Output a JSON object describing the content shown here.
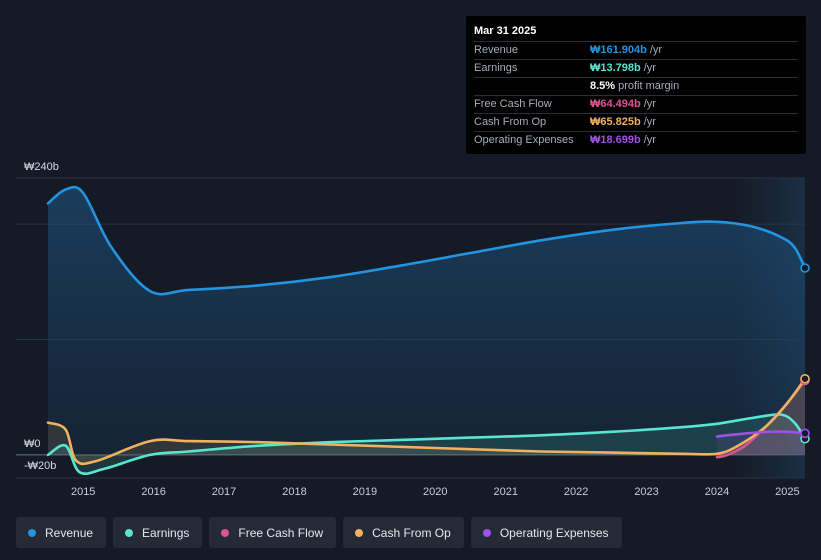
{
  "chart_data": {
    "type": "area",
    "y_axis": {
      "top_label": "₩240b",
      "zero_label": "₩0",
      "bottom_label": "-₩20b",
      "ylim": [
        -20,
        240
      ]
    },
    "x_ticks": [
      "2015",
      "2016",
      "2017",
      "2018",
      "2019",
      "2020",
      "2021",
      "2022",
      "2023",
      "2024",
      "2025"
    ],
    "xlim": [
      2014.5,
      2025.25
    ],
    "forecast_start": 2024.25,
    "series": [
      {
        "name": "Revenue",
        "color": "#2394df",
        "points": [
          [
            2014.5,
            218
          ],
          [
            2014.75,
            230
          ],
          [
            2015.0,
            227
          ],
          [
            2015.4,
            180
          ],
          [
            2015.95,
            142
          ],
          [
            2016.5,
            143
          ],
          [
            2017.5,
            147
          ],
          [
            2018.5,
            154
          ],
          [
            2019.5,
            164
          ],
          [
            2020.5,
            175
          ],
          [
            2021.5,
            186
          ],
          [
            2022.5,
            195
          ],
          [
            2023.5,
            201
          ],
          [
            2024.0,
            202
          ],
          [
            2024.5,
            198
          ],
          [
            2024.9,
            189
          ],
          [
            2025.1,
            180
          ],
          [
            2025.25,
            162
          ]
        ]
      },
      {
        "name": "Earnings",
        "color": "#58e6d0",
        "points": [
          [
            2014.5,
            0
          ],
          [
            2014.75,
            8
          ],
          [
            2014.95,
            -15
          ],
          [
            2015.3,
            -12
          ],
          [
            2015.95,
            0
          ],
          [
            2016.5,
            3
          ],
          [
            2017.5,
            8
          ],
          [
            2018.5,
            11
          ],
          [
            2019.5,
            13
          ],
          [
            2020.5,
            15
          ],
          [
            2021.5,
            17
          ],
          [
            2022.5,
            20
          ],
          [
            2023.5,
            24
          ],
          [
            2024.0,
            27
          ],
          [
            2024.5,
            32
          ],
          [
            2024.9,
            35
          ],
          [
            2025.1,
            28
          ],
          [
            2025.25,
            14
          ]
        ]
      },
      {
        "name": "Free Cash Flow",
        "color": "#e0518f",
        "points": [
          [
            2024.0,
            -2
          ],
          [
            2024.15,
            0
          ],
          [
            2024.4,
            8
          ],
          [
            2024.7,
            25
          ],
          [
            2025.0,
            45
          ],
          [
            2025.25,
            64.5
          ]
        ]
      },
      {
        "name": "Cash From Op",
        "color": "#f0b25f",
        "points": [
          [
            2014.5,
            28
          ],
          [
            2014.75,
            22
          ],
          [
            2014.9,
            -5
          ],
          [
            2015.2,
            -5
          ],
          [
            2015.95,
            12
          ],
          [
            2016.5,
            12
          ],
          [
            2017.5,
            11
          ],
          [
            2018.5,
            9
          ],
          [
            2019.5,
            7
          ],
          [
            2020.5,
            5
          ],
          [
            2021.5,
            3
          ],
          [
            2022.5,
            2
          ],
          [
            2023.5,
            1
          ],
          [
            2024.0,
            1
          ],
          [
            2024.3,
            8
          ],
          [
            2024.7,
            25
          ],
          [
            2025.0,
            45
          ],
          [
            2025.25,
            66
          ]
        ]
      },
      {
        "name": "Operating Expenses",
        "color": "#a051e8",
        "points": [
          [
            2024.0,
            16
          ],
          [
            2024.3,
            18
          ],
          [
            2024.7,
            20
          ],
          [
            2025.0,
            20
          ],
          [
            2025.25,
            18.7
          ]
        ]
      }
    ]
  },
  "tooltip": {
    "date": "Mar 31 2025",
    "rows": [
      {
        "label": "Revenue",
        "value": "₩161.904b",
        "unit": "/yr",
        "color": "#2394df"
      },
      {
        "label": "Earnings",
        "value": "₩13.798b",
        "unit": "/yr",
        "color": "#58e6d0"
      },
      {
        "label": "",
        "value": "8.5%",
        "unit": "profit margin",
        "color": "#ffffff"
      },
      {
        "label": "Free Cash Flow",
        "value": "₩64.494b",
        "unit": "/yr",
        "color": "#e0518f"
      },
      {
        "label": "Cash From Op",
        "value": "₩65.825b",
        "unit": "/yr",
        "color": "#f0b25f"
      },
      {
        "label": "Operating Expenses",
        "value": "₩18.699b",
        "unit": "/yr",
        "color": "#a051e8"
      }
    ]
  },
  "legend": [
    {
      "label": "Revenue",
      "color": "#2394df"
    },
    {
      "label": "Earnings",
      "color": "#58e6d0"
    },
    {
      "label": "Free Cash Flow",
      "color": "#e0518f"
    },
    {
      "label": "Cash From Op",
      "color": "#f0b25f"
    },
    {
      "label": "Operating Expenses",
      "color": "#a051e8"
    }
  ]
}
